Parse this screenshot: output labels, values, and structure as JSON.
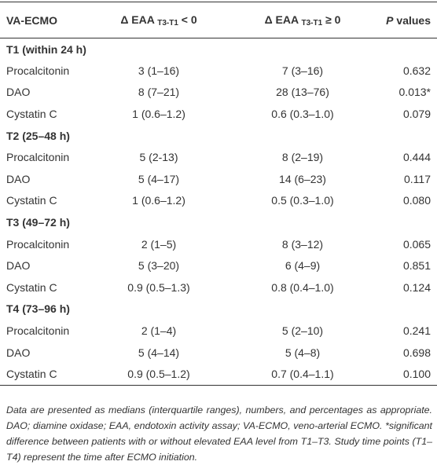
{
  "header": [
    "VA-ECMO",
    {
      "pre": "Δ EAA",
      "sub": "T3-T1",
      "post": "< 0"
    },
    {
      "pre": "Δ EAA",
      "sub": "T3-T1",
      "post": "≥ 0"
    },
    {
      "italic": "P",
      "text": "values"
    }
  ],
  "sections": [
    {
      "title": "T1 (within 24 h)",
      "rows": [
        [
          "Procalcitonin",
          "3 (1–16)",
          "7 (3–16)",
          "0.632"
        ],
        [
          "DAO",
          "8 (7–21)",
          "28 (13–76)",
          "0.013*"
        ],
        [
          "Cystatin C",
          "1 (0.6–1.2)",
          "0.6 (0.3–1.0)",
          "0.079"
        ]
      ]
    },
    {
      "title": "T2 (25–48 h)",
      "rows": [
        [
          "Procalcitonin",
          "5 (2-13)",
          "8 (2–19)",
          "0.444"
        ],
        [
          "DAO",
          "5 (4–17)",
          "14 (6–23)",
          "0.117"
        ],
        [
          "Cystatin C",
          "1 (0.6–1.2)",
          "0.5 (0.3–1.0)",
          "0.080"
        ]
      ]
    },
    {
      "title": "T3 (49–72 h)",
      "rows": [
        [
          "Procalcitonin",
          "2 (1–5)",
          "8 (3–12)",
          "0.065"
        ],
        [
          "DAO",
          "5 (3–20)",
          "6 (4–9)",
          "0.851"
        ],
        [
          "Cystatin C",
          "0.9 (0.5–1.3)",
          "0.8 (0.4–1.0)",
          "0.124"
        ]
      ]
    },
    {
      "title": "T4 (73–96 h)",
      "rows": [
        [
          "Procalcitonin",
          "2 (1–4)",
          "5 (2–10)",
          "0.241"
        ],
        [
          "DAO",
          "5 (4–14)",
          "5 (4–8)",
          "0.698"
        ],
        [
          "Cystatin C",
          "0.9 (0.5–1.2)",
          "0.7 (0.4–1.1)",
          "0.100"
        ]
      ]
    }
  ],
  "footnote": "Data are presented as medians (interquartile ranges), numbers, and percentages as appropriate. DAO; diamine oxidase; EAA, endotoxin activity assay; VA-ECMO, veno-arterial ECMO. *significant difference between patients with or without elevated EAA level from T1–T3. Study time points (T1–T4) represent the time after ECMO initiation."
}
